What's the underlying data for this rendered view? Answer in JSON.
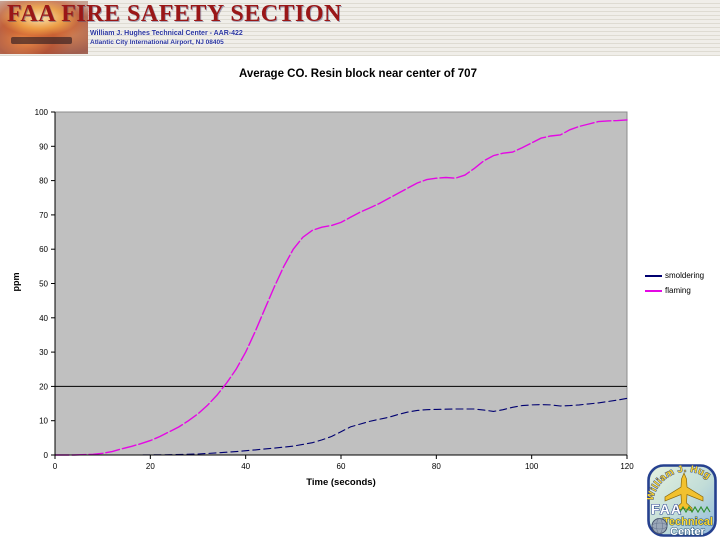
{
  "header": {
    "title": "FAA FIRE SAFETY SECTION",
    "subtitle_line1": "William J. Hughes Technical Center  -  AAR-422",
    "subtitle_line2": "Atlantic City International Airport, NJ 08405"
  },
  "chart_data": {
    "type": "line",
    "title": "Average CO. Resin block near center of 707",
    "xlabel": "Time (seconds)",
    "ylabel": "ppm",
    "xlim": [
      0,
      120
    ],
    "ylim": [
      0,
      100
    ],
    "x_ticks": [
      0,
      20,
      40,
      60,
      80,
      100,
      120
    ],
    "y_ticks": [
      0,
      10,
      20,
      30,
      40,
      50,
      60,
      70,
      80,
      90,
      100
    ],
    "grid": false,
    "plot_bg": "#c0c0c0",
    "legend_position": "right-outside",
    "reference_line": {
      "y": 20,
      "color": "#000000"
    },
    "series": [
      {
        "name": "smoldering",
        "color": "#000070",
        "dash": "7 4",
        "width": 1.1,
        "points": [
          [
            0,
            0
          ],
          [
            6,
            0
          ],
          [
            12,
            0
          ],
          [
            18,
            0
          ],
          [
            24,
            0.1
          ],
          [
            30,
            0.3
          ],
          [
            34,
            0.6
          ],
          [
            38,
            1
          ],
          [
            42,
            1.5
          ],
          [
            46,
            2
          ],
          [
            50,
            2.6
          ],
          [
            54,
            3.6
          ],
          [
            56,
            4.4
          ],
          [
            58,
            5.4
          ],
          [
            60,
            6.8
          ],
          [
            62,
            8.2
          ],
          [
            64,
            9
          ],
          [
            66,
            9.8
          ],
          [
            68,
            10.4
          ],
          [
            70,
            11
          ],
          [
            72,
            11.8
          ],
          [
            74,
            12.5
          ],
          [
            76,
            13
          ],
          [
            78,
            13.2
          ],
          [
            80,
            13.3
          ],
          [
            84,
            13.4
          ],
          [
            88,
            13.4
          ],
          [
            90,
            13.1
          ],
          [
            92,
            12.7
          ],
          [
            94,
            13.2
          ],
          [
            96,
            13.9
          ],
          [
            98,
            14.4
          ],
          [
            100,
            14.6
          ],
          [
            102,
            14.7
          ],
          [
            104,
            14.6
          ],
          [
            106,
            14.3
          ],
          [
            108,
            14.4
          ],
          [
            110,
            14.6
          ],
          [
            112,
            14.9
          ],
          [
            114,
            15.2
          ],
          [
            116,
            15.6
          ],
          [
            118,
            16
          ],
          [
            120,
            16.5
          ]
        ]
      },
      {
        "name": "flaming",
        "color": "#e408e4",
        "dash": "14 3",
        "width": 1.4,
        "points": [
          [
            0,
            0
          ],
          [
            4,
            0
          ],
          [
            8,
            0.2
          ],
          [
            10,
            0.5
          ],
          [
            12,
            1
          ],
          [
            14,
            1.8
          ],
          [
            16,
            2.5
          ],
          [
            18,
            3.3
          ],
          [
            20,
            4.2
          ],
          [
            22,
            5.4
          ],
          [
            24,
            6.8
          ],
          [
            26,
            8.2
          ],
          [
            28,
            10
          ],
          [
            30,
            12
          ],
          [
            32,
            14.5
          ],
          [
            34,
            17.5
          ],
          [
            36,
            21
          ],
          [
            38,
            25
          ],
          [
            40,
            30
          ],
          [
            42,
            36
          ],
          [
            44,
            42.5
          ],
          [
            46,
            49
          ],
          [
            48,
            55
          ],
          [
            50,
            60
          ],
          [
            52,
            63.5
          ],
          [
            54,
            65.5
          ],
          [
            56,
            66.4
          ],
          [
            58,
            66.9
          ],
          [
            60,
            67.8
          ],
          [
            62,
            69.3
          ],
          [
            64,
            70.8
          ],
          [
            66,
            72
          ],
          [
            68,
            73.3
          ],
          [
            70,
            74.8
          ],
          [
            72,
            76.3
          ],
          [
            74,
            77.8
          ],
          [
            76,
            79.3
          ],
          [
            78,
            80.3
          ],
          [
            80,
            80.7
          ],
          [
            82,
            80.9
          ],
          [
            84,
            80.7
          ],
          [
            86,
            81.6
          ],
          [
            88,
            83.6
          ],
          [
            90,
            85.8
          ],
          [
            92,
            87.3
          ],
          [
            94,
            88
          ],
          [
            96,
            88.3
          ],
          [
            98,
            89.6
          ],
          [
            100,
            91
          ],
          [
            102,
            92.4
          ],
          [
            104,
            93
          ],
          [
            106,
            93.3
          ],
          [
            108,
            94.8
          ],
          [
            110,
            95.8
          ],
          [
            112,
            96.5
          ],
          [
            114,
            97.2
          ],
          [
            116,
            97.4
          ],
          [
            118,
            97.5
          ],
          [
            120,
            97.7
          ]
        ]
      }
    ]
  },
  "footer_logo": {
    "arc_text": "William J. Hughes",
    "faa": "FAA",
    "technical": "Technical",
    "center": "Center"
  }
}
